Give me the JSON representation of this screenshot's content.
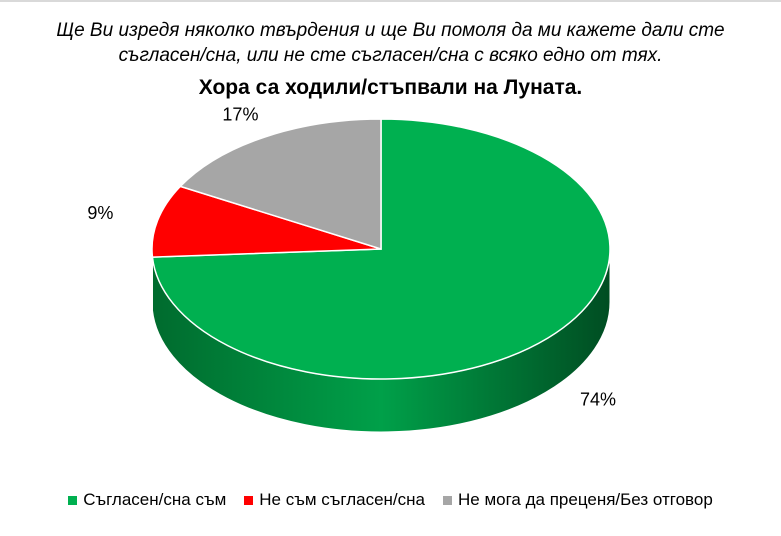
{
  "question": {
    "line1": "Ще Ви изредя няколко твърдения и ще Ви помоля да ми кажете дали сте",
    "line2": "съгласен/сна, или не сте съгласен/сна с всяко едно от тях."
  },
  "chart_data": {
    "type": "pie",
    "title": "Хора са ходили/стъпвали на Луната.",
    "style": "3d",
    "legend_position": "bottom",
    "slices": [
      {
        "name": "Съгласен/сна съм",
        "value": 74,
        "label": "74%",
        "color": "#00b050",
        "side_color": "#00803a"
      },
      {
        "name": "Не съм съгласен/сна",
        "value": 9,
        "label": "9%",
        "color": "#ff0000",
        "side_color": "#b00000"
      },
      {
        "name": "Не мога да преценя/Без отговор",
        "value": 17,
        "label": "17%",
        "color": "#a6a6a6",
        "side_color": "#7a7a7a"
      }
    ]
  }
}
